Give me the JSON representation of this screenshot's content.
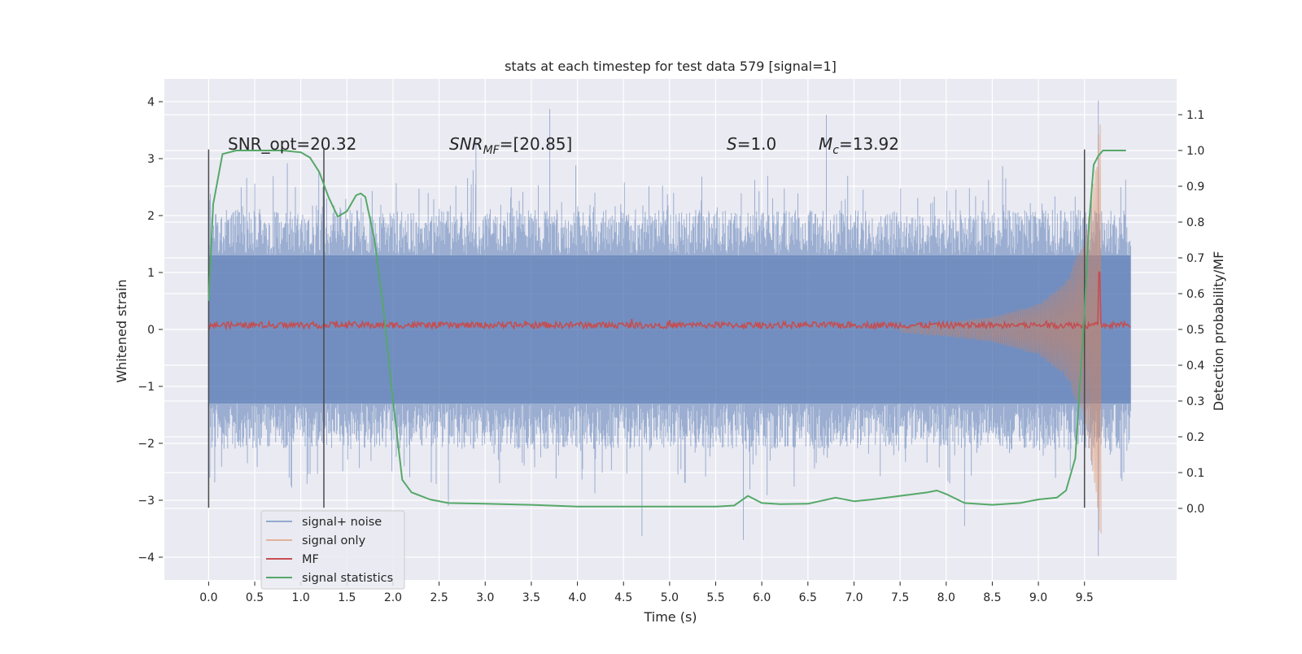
{
  "chart_data": {
    "type": "line",
    "title": "stats at each timestep for test data 579 [signal=1]",
    "xlabel": "Time (s)",
    "ylabel": "Whitened strain",
    "y2label": "Detection probability/MF",
    "xlim": [
      -0.48,
      10.5
    ],
    "ylim": [
      -4.4,
      4.4
    ],
    "y2lim": [
      -0.2,
      1.2
    ],
    "x_ticks": [
      "0.0",
      "0.5",
      "1.0",
      "1.5",
      "2.0",
      "2.5",
      "3.0",
      "3.5",
      "4.0",
      "4.5",
      "5.0",
      "5.5",
      "6.0",
      "6.5",
      "7.0",
      "7.5",
      "8.0",
      "8.5",
      "9.0",
      "9.5"
    ],
    "y_ticks": [
      "4",
      "3",
      "2",
      "1",
      "0",
      "−1",
      "−2",
      "−3",
      "−4"
    ],
    "y2_ticks": [
      "1.1",
      "1.0",
      "0.9",
      "0.8",
      "0.7",
      "0.6",
      "0.5",
      "0.4",
      "0.3",
      "0.2",
      "0.1",
      "0.0"
    ],
    "grid": true,
    "legend_position": "lower-left",
    "annotations": {
      "snr_opt": "SNR_opt=20.32",
      "snr_mf_name": "SNR",
      "snr_mf_sub": "MF",
      "snr_mf_value": "=[20.85]",
      "s_name": "S",
      "s_value": "=1.0",
      "mc_name": "M",
      "mc_sub": "c",
      "mc_value": "=13.92"
    },
    "vertical_markers": [
      {
        "x": 0.0,
        "ymin": -3.13,
        "ymax": 3.16
      },
      {
        "x": 1.25,
        "ymin": -3.13,
        "ymax": 3.16
      },
      {
        "x": 9.5,
        "ymin": -3.13,
        "ymax": 3.16
      }
    ],
    "series": [
      {
        "name": "signal+ noise",
        "color": "#4c72b0",
        "axis": "left",
        "style": "noise band, envelope about ±2.1 with peaks to 3.9 (t≈3.7), 4.0 (t≈9.65), −3.6 (t≈4.7), −4.0 (t≈9.65)",
        "band_core": 1.3,
        "band_extent": 2.1,
        "x_range": [
          0.0,
          10.0
        ],
        "peaks": [
          [
            3.7,
            3.87
          ],
          [
            6.7,
            3.77
          ],
          [
            2.9,
            3.3
          ],
          [
            9.65,
            4.02
          ],
          [
            4.7,
            -3.63
          ],
          [
            5.8,
            -3.7
          ],
          [
            9.65,
            -3.98
          ],
          [
            8.2,
            -3.45
          ],
          [
            2.6,
            -3.1
          ]
        ]
      },
      {
        "name": "signal only",
        "color": "#dd8452",
        "axis": "left",
        "style": "chirp growing from ~0.05 at t=7.5 to ~3.6 near t=9.65",
        "x_range": [
          7.5,
          9.68
        ],
        "amplitude": [
          [
            7.5,
            0.05
          ],
          [
            8.0,
            0.12
          ],
          [
            8.5,
            0.22
          ],
          [
            9.0,
            0.45
          ],
          [
            9.3,
            0.85
          ],
          [
            9.5,
            1.6
          ],
          [
            9.6,
            2.6
          ],
          [
            9.65,
            3.6
          ]
        ]
      },
      {
        "name": "MF",
        "color": "#c44e52",
        "axis": "right",
        "x_range": [
          0.0,
          10.0
        ],
        "base": 0.512,
        "spike": [
          [
            9.66,
            0.66
          ]
        ]
      },
      {
        "name": "signal statistics",
        "color": "#55a868",
        "axis": "right",
        "x": [
          0.0,
          0.05,
          0.1,
          0.15,
          0.3,
          0.5,
          0.8,
          1.0,
          1.1,
          1.2,
          1.3,
          1.4,
          1.5,
          1.6,
          1.65,
          1.7,
          1.8,
          1.9,
          2.0,
          2.1,
          2.2,
          2.4,
          2.6,
          3.0,
          3.5,
          4.0,
          5.0,
          5.5,
          5.7,
          5.85,
          6.0,
          6.2,
          6.5,
          6.8,
          7.0,
          7.2,
          7.5,
          7.8,
          7.9,
          8.0,
          8.2,
          8.5,
          8.8,
          9.0,
          9.2,
          9.3,
          9.4,
          9.5,
          9.55,
          9.6,
          9.65,
          9.7,
          9.8,
          9.95
        ],
        "y": [
          0.58,
          0.85,
          0.92,
          0.99,
          1.0,
          1.0,
          1.0,
          0.995,
          0.98,
          0.94,
          0.87,
          0.815,
          0.83,
          0.875,
          0.88,
          0.87,
          0.75,
          0.55,
          0.3,
          0.08,
          0.045,
          0.025,
          0.015,
          0.013,
          0.01,
          0.005,
          0.005,
          0.005,
          0.008,
          0.035,
          0.015,
          0.012,
          0.013,
          0.03,
          0.02,
          0.025,
          0.035,
          0.045,
          0.05,
          0.04,
          0.015,
          0.01,
          0.015,
          0.025,
          0.03,
          0.05,
          0.14,
          0.55,
          0.8,
          0.96,
          0.985,
          1.0,
          1.0,
          1.0
        ]
      }
    ]
  }
}
